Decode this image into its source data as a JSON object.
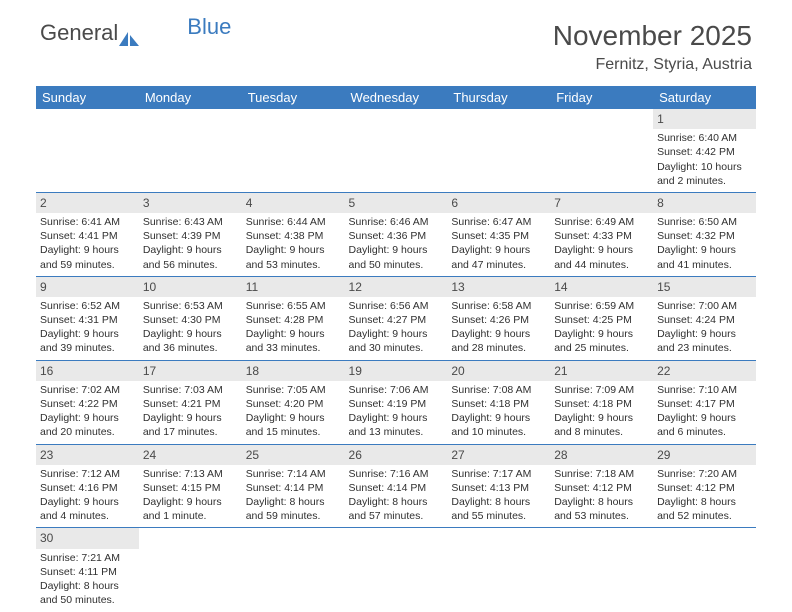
{
  "logo": {
    "general": "General",
    "blue": "Blue",
    "icon_fill": "#3b7bbf"
  },
  "header": {
    "month_title": "November 2025",
    "location": "Fernitz, Styria, Austria"
  },
  "styling": {
    "header_bg": "#3b7bbf",
    "header_text": "#ffffff",
    "daynum_bg": "#e9e9e9",
    "text_color": "#303030",
    "row_border": "#3b7bbf",
    "page_bg": "#ffffff",
    "month_title_fontsize": 28,
    "location_fontsize": 16,
    "dayheader_fontsize": 13,
    "cell_fontsize": 10.5
  },
  "day_headers": [
    "Sunday",
    "Monday",
    "Tuesday",
    "Wednesday",
    "Thursday",
    "Friday",
    "Saturday"
  ],
  "weeks": [
    [
      null,
      null,
      null,
      null,
      null,
      null,
      {
        "n": "1",
        "sr": "6:40 AM",
        "ss": "4:42 PM",
        "dl": "10 hours and 2 minutes."
      }
    ],
    [
      {
        "n": "2",
        "sr": "6:41 AM",
        "ss": "4:41 PM",
        "dl": "9 hours and 59 minutes."
      },
      {
        "n": "3",
        "sr": "6:43 AM",
        "ss": "4:39 PM",
        "dl": "9 hours and 56 minutes."
      },
      {
        "n": "4",
        "sr": "6:44 AM",
        "ss": "4:38 PM",
        "dl": "9 hours and 53 minutes."
      },
      {
        "n": "5",
        "sr": "6:46 AM",
        "ss": "4:36 PM",
        "dl": "9 hours and 50 minutes."
      },
      {
        "n": "6",
        "sr": "6:47 AM",
        "ss": "4:35 PM",
        "dl": "9 hours and 47 minutes."
      },
      {
        "n": "7",
        "sr": "6:49 AM",
        "ss": "4:33 PM",
        "dl": "9 hours and 44 minutes."
      },
      {
        "n": "8",
        "sr": "6:50 AM",
        "ss": "4:32 PM",
        "dl": "9 hours and 41 minutes."
      }
    ],
    [
      {
        "n": "9",
        "sr": "6:52 AM",
        "ss": "4:31 PM",
        "dl": "9 hours and 39 minutes."
      },
      {
        "n": "10",
        "sr": "6:53 AM",
        "ss": "4:30 PM",
        "dl": "9 hours and 36 minutes."
      },
      {
        "n": "11",
        "sr": "6:55 AM",
        "ss": "4:28 PM",
        "dl": "9 hours and 33 minutes."
      },
      {
        "n": "12",
        "sr": "6:56 AM",
        "ss": "4:27 PM",
        "dl": "9 hours and 30 minutes."
      },
      {
        "n": "13",
        "sr": "6:58 AM",
        "ss": "4:26 PM",
        "dl": "9 hours and 28 minutes."
      },
      {
        "n": "14",
        "sr": "6:59 AM",
        "ss": "4:25 PM",
        "dl": "9 hours and 25 minutes."
      },
      {
        "n": "15",
        "sr": "7:00 AM",
        "ss": "4:24 PM",
        "dl": "9 hours and 23 minutes."
      }
    ],
    [
      {
        "n": "16",
        "sr": "7:02 AM",
        "ss": "4:22 PM",
        "dl": "9 hours and 20 minutes."
      },
      {
        "n": "17",
        "sr": "7:03 AM",
        "ss": "4:21 PM",
        "dl": "9 hours and 17 minutes."
      },
      {
        "n": "18",
        "sr": "7:05 AM",
        "ss": "4:20 PM",
        "dl": "9 hours and 15 minutes."
      },
      {
        "n": "19",
        "sr": "7:06 AM",
        "ss": "4:19 PM",
        "dl": "9 hours and 13 minutes."
      },
      {
        "n": "20",
        "sr": "7:08 AM",
        "ss": "4:18 PM",
        "dl": "9 hours and 10 minutes."
      },
      {
        "n": "21",
        "sr": "7:09 AM",
        "ss": "4:18 PM",
        "dl": "9 hours and 8 minutes."
      },
      {
        "n": "22",
        "sr": "7:10 AM",
        "ss": "4:17 PM",
        "dl": "9 hours and 6 minutes."
      }
    ],
    [
      {
        "n": "23",
        "sr": "7:12 AM",
        "ss": "4:16 PM",
        "dl": "9 hours and 4 minutes."
      },
      {
        "n": "24",
        "sr": "7:13 AM",
        "ss": "4:15 PM",
        "dl": "9 hours and 1 minute."
      },
      {
        "n": "25",
        "sr": "7:14 AM",
        "ss": "4:14 PM",
        "dl": "8 hours and 59 minutes."
      },
      {
        "n": "26",
        "sr": "7:16 AM",
        "ss": "4:14 PM",
        "dl": "8 hours and 57 minutes."
      },
      {
        "n": "27",
        "sr": "7:17 AM",
        "ss": "4:13 PM",
        "dl": "8 hours and 55 minutes."
      },
      {
        "n": "28",
        "sr": "7:18 AM",
        "ss": "4:12 PM",
        "dl": "8 hours and 53 minutes."
      },
      {
        "n": "29",
        "sr": "7:20 AM",
        "ss": "4:12 PM",
        "dl": "8 hours and 52 minutes."
      }
    ],
    [
      {
        "n": "30",
        "sr": "7:21 AM",
        "ss": "4:11 PM",
        "dl": "8 hours and 50 minutes."
      },
      null,
      null,
      null,
      null,
      null,
      null
    ]
  ],
  "labels": {
    "sunrise": "Sunrise: ",
    "sunset": "Sunset: ",
    "daylight": "Daylight: "
  }
}
